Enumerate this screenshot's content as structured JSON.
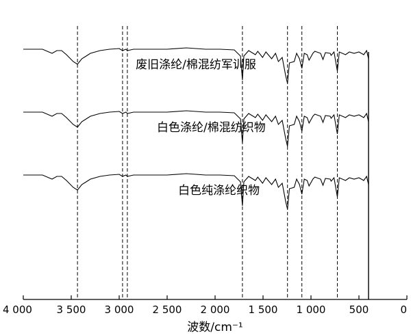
{
  "chart_data": {
    "type": "line",
    "title": "",
    "xlabel": "波数/cm⁻¹",
    "ylabel": "",
    "xlim": [
      4000,
      0
    ],
    "x_ticks": [
      4000,
      3500,
      3000,
      2500,
      2000,
      1500,
      1000,
      500,
      0
    ],
    "x_tick_labels": [
      "4 000",
      "3 500",
      "3 000",
      "2 500",
      "2 000",
      "1 500",
      "1 000",
      "500",
      "0"
    ],
    "grid": false,
    "reference_lines_x": [
      3435,
      2965,
      2915,
      1715,
      1245,
      1095,
      725
    ],
    "series": [
      {
        "name": "废旧涤纶/棉混纺军训服",
        "points": [
          [
            4000,
            0
          ],
          [
            3800,
            0
          ],
          [
            3700,
            -6
          ],
          [
            3650,
            -2
          ],
          [
            3600,
            -2
          ],
          [
            3550,
            -8
          ],
          [
            3480,
            -18
          ],
          [
            3435,
            -22
          ],
          [
            3390,
            -14
          ],
          [
            3300,
            -6
          ],
          [
            3200,
            -2
          ],
          [
            3100,
            0
          ],
          [
            3000,
            1
          ],
          [
            2965,
            -2
          ],
          [
            2930,
            0
          ],
          [
            2915,
            -2
          ],
          [
            2850,
            0
          ],
          [
            2700,
            0
          ],
          [
            2500,
            0
          ],
          [
            2300,
            2
          ],
          [
            2100,
            0
          ],
          [
            1950,
            0
          ],
          [
            1800,
            -1
          ],
          [
            1735,
            -10
          ],
          [
            1715,
            -45
          ],
          [
            1700,
            -10
          ],
          [
            1650,
            -2
          ],
          [
            1580,
            -8
          ],
          [
            1555,
            -3
          ],
          [
            1505,
            -12
          ],
          [
            1470,
            -4
          ],
          [
            1410,
            -14
          ],
          [
            1370,
            -6
          ],
          [
            1340,
            -18
          ],
          [
            1300,
            -12
          ],
          [
            1265,
            -38
          ],
          [
            1245,
            -50
          ],
          [
            1225,
            -20
          ],
          [
            1175,
            -18
          ],
          [
            1150,
            -6
          ],
          [
            1120,
            -14
          ],
          [
            1095,
            -28
          ],
          [
            1070,
            -6
          ],
          [
            1040,
            -8
          ],
          [
            1020,
            -16
          ],
          [
            980,
            -6
          ],
          [
            960,
            -3
          ],
          [
            900,
            -6
          ],
          [
            875,
            -15
          ],
          [
            850,
            -5
          ],
          [
            800,
            -6
          ],
          [
            790,
            -9
          ],
          [
            760,
            -4
          ],
          [
            725,
            -32
          ],
          [
            705,
            -4
          ],
          [
            640,
            -8
          ],
          [
            600,
            -4
          ],
          [
            550,
            -6
          ],
          [
            500,
            -4
          ],
          [
            450,
            -8
          ],
          [
            420,
            -2
          ],
          [
            400,
            -14
          ]
        ],
        "label_x": 2200
      },
      {
        "name": "白色涤纶/棉混纺织物",
        "points": [
          [
            4000,
            0
          ],
          [
            3800,
            0
          ],
          [
            3700,
            -6
          ],
          [
            3650,
            -2
          ],
          [
            3600,
            -2
          ],
          [
            3550,
            -8
          ],
          [
            3480,
            -18
          ],
          [
            3435,
            -22
          ],
          [
            3390,
            -14
          ],
          [
            3300,
            -6
          ],
          [
            3200,
            -2
          ],
          [
            3100,
            0
          ],
          [
            3000,
            1
          ],
          [
            2965,
            -2
          ],
          [
            2930,
            0
          ],
          [
            2915,
            -2
          ],
          [
            2850,
            0
          ],
          [
            2700,
            0
          ],
          [
            2500,
            0
          ],
          [
            2300,
            2
          ],
          [
            2100,
            0
          ],
          [
            1950,
            0
          ],
          [
            1800,
            -1
          ],
          [
            1735,
            -10
          ],
          [
            1715,
            -45
          ],
          [
            1700,
            -10
          ],
          [
            1650,
            -2
          ],
          [
            1580,
            -8
          ],
          [
            1555,
            -3
          ],
          [
            1505,
            -12
          ],
          [
            1470,
            -4
          ],
          [
            1410,
            -14
          ],
          [
            1370,
            -6
          ],
          [
            1340,
            -18
          ],
          [
            1300,
            -12
          ],
          [
            1265,
            -38
          ],
          [
            1245,
            -50
          ],
          [
            1225,
            -20
          ],
          [
            1175,
            -18
          ],
          [
            1150,
            -6
          ],
          [
            1120,
            -14
          ],
          [
            1095,
            -28
          ],
          [
            1070,
            -6
          ],
          [
            1040,
            -8
          ],
          [
            1020,
            -16
          ],
          [
            980,
            -6
          ],
          [
            960,
            -3
          ],
          [
            900,
            -6
          ],
          [
            875,
            -15
          ],
          [
            850,
            -5
          ],
          [
            800,
            -6
          ],
          [
            790,
            -9
          ],
          [
            760,
            -4
          ],
          [
            725,
            -32
          ],
          [
            705,
            -4
          ],
          [
            640,
            -8
          ],
          [
            600,
            -4
          ],
          [
            550,
            -6
          ],
          [
            500,
            -4
          ],
          [
            450,
            -8
          ],
          [
            420,
            -2
          ],
          [
            400,
            -14
          ]
        ],
        "label_x": 2040
      },
      {
        "name": "白色纯涤纶织物",
        "points": [
          [
            4000,
            0
          ],
          [
            3800,
            0
          ],
          [
            3700,
            -6
          ],
          [
            3650,
            -2
          ],
          [
            3600,
            -2
          ],
          [
            3550,
            -8
          ],
          [
            3480,
            -18
          ],
          [
            3435,
            -22
          ],
          [
            3390,
            -14
          ],
          [
            3300,
            -6
          ],
          [
            3200,
            -2
          ],
          [
            3100,
            0
          ],
          [
            3000,
            1
          ],
          [
            2965,
            -2
          ],
          [
            2930,
            0
          ],
          [
            2915,
            -2
          ],
          [
            2850,
            0
          ],
          [
            2700,
            0
          ],
          [
            2500,
            0
          ],
          [
            2300,
            2
          ],
          [
            2100,
            0
          ],
          [
            1950,
            0
          ],
          [
            1800,
            -1
          ],
          [
            1735,
            -10
          ],
          [
            1715,
            -45
          ],
          [
            1700,
            -10
          ],
          [
            1650,
            -2
          ],
          [
            1580,
            -8
          ],
          [
            1555,
            -3
          ],
          [
            1505,
            -12
          ],
          [
            1470,
            -4
          ],
          [
            1410,
            -14
          ],
          [
            1370,
            -6
          ],
          [
            1340,
            -18
          ],
          [
            1300,
            -12
          ],
          [
            1265,
            -38
          ],
          [
            1245,
            -50
          ],
          [
            1225,
            -20
          ],
          [
            1175,
            -18
          ],
          [
            1150,
            -6
          ],
          [
            1120,
            -14
          ],
          [
            1095,
            -28
          ],
          [
            1070,
            -6
          ],
          [
            1040,
            -8
          ],
          [
            1020,
            -16
          ],
          [
            980,
            -6
          ],
          [
            960,
            -3
          ],
          [
            900,
            -6
          ],
          [
            875,
            -15
          ],
          [
            850,
            -5
          ],
          [
            800,
            -6
          ],
          [
            790,
            -9
          ],
          [
            760,
            -4
          ],
          [
            725,
            -32
          ],
          [
            705,
            -4
          ],
          [
            640,
            -8
          ],
          [
            600,
            -4
          ],
          [
            550,
            -6
          ],
          [
            500,
            -4
          ],
          [
            450,
            -8
          ],
          [
            420,
            -2
          ],
          [
            400,
            -14
          ]
        ],
        "label_x": 1960
      }
    ]
  }
}
